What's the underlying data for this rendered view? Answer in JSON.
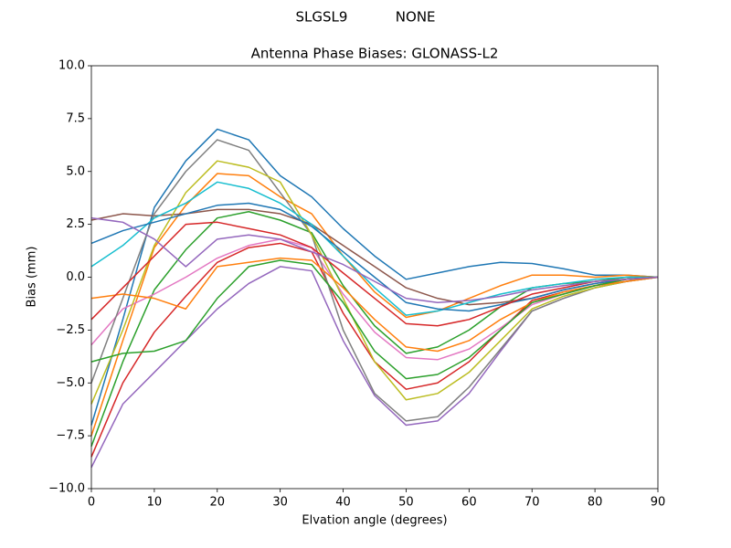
{
  "chart_data": {
    "type": "line",
    "suptitle": "SLGSL9           NONE",
    "title": "Antenna Phase Biases: GLONASS-L2",
    "xlabel": "Elvation angle (degrees)",
    "ylabel": "Bias (mm)",
    "x": [
      0,
      5,
      10,
      15,
      20,
      25,
      30,
      35,
      40,
      45,
      50,
      55,
      60,
      65,
      70,
      75,
      80,
      85,
      90
    ],
    "xlim": [
      0,
      90
    ],
    "xticks": [
      0,
      10,
      20,
      30,
      40,
      50,
      60,
      70,
      80,
      90
    ],
    "ylim": [
      -10,
      10
    ],
    "yticks": [
      {
        "value": -10,
        "label": "−10.0"
      },
      {
        "value": -7.5,
        "label": "−7.5"
      },
      {
        "value": -5,
        "label": "−5.0"
      },
      {
        "value": -2.5,
        "label": "−2.5"
      },
      {
        "value": 0,
        "label": "0.0"
      },
      {
        "value": 2.5,
        "label": "2.5"
      },
      {
        "value": 5,
        "label": "5.0"
      },
      {
        "value": 7.5,
        "label": "7.5"
      },
      {
        "value": 10,
        "label": "10.0"
      }
    ],
    "series": [
      {
        "color": "#1f77b4",
        "values": [
          -7,
          -2,
          3.3,
          5.5,
          7,
          6.5,
          4.8,
          3.8,
          2.3,
          1,
          -0.1,
          0.2,
          0.5,
          0.7,
          0.65,
          0.4,
          0.1,
          0.1,
          0
        ]
      },
      {
        "color": "#ff7f0e",
        "values": [
          -7.5,
          -3,
          1.4,
          3.4,
          4.9,
          4.8,
          3.8,
          3,
          1,
          -0.7,
          -1.9,
          -1.6,
          -1,
          -0.4,
          0.1,
          0.1,
          0,
          0.1,
          0
        ]
      },
      {
        "color": "#2ca02c",
        "values": [
          -8,
          -4,
          -0.6,
          1.3,
          2.8,
          3.1,
          2.7,
          2.1,
          -0.4,
          -2.3,
          -3.6,
          -3.3,
          -2.5,
          -1.4,
          -0.5,
          -0.3,
          -0.2,
          0,
          0
        ]
      },
      {
        "color": "#d62728",
        "values": [
          -8.5,
          -5,
          -2.6,
          -0.9,
          0.7,
          1.4,
          1.6,
          1.2,
          -1.7,
          -4,
          -5.3,
          -5,
          -4,
          -2.5,
          -1.1,
          -0.7,
          -0.4,
          -0.1,
          0
        ]
      },
      {
        "color": "#9467bd",
        "values": [
          -9,
          -6,
          -4.5,
          -3,
          -1.5,
          -0.3,
          0.5,
          0.3,
          -3,
          -5.6,
          -7,
          -6.8,
          -5.5,
          -3.5,
          -1.6,
          -1,
          -0.5,
          -0.2,
          0
        ]
      },
      {
        "color": "#8c564b",
        "values": [
          2.7,
          3,
          2.9,
          3,
          3.2,
          3.2,
          3,
          2.5,
          1.5,
          0.5,
          -0.5,
          -1,
          -1.3,
          -1.2,
          -1,
          -0.6,
          -0.3,
          -0.1,
          0
        ]
      },
      {
        "color": "#e377c2",
        "values": [
          -3.2,
          -1.5,
          -0.8,
          0,
          0.9,
          1.5,
          1.8,
          1.4,
          -0.8,
          -2.6,
          -3.8,
          -3.9,
          -3.4,
          -2.4,
          -1.3,
          -0.8,
          -0.4,
          -0.2,
          0
        ]
      },
      {
        "color": "#7f7f7f",
        "values": [
          -5,
          -1,
          3,
          5,
          6.5,
          6,
          4,
          2,
          -2.5,
          -5.5,
          -6.8,
          -6.6,
          -5.2,
          -3.4,
          -1.6,
          -1,
          -0.5,
          -0.2,
          0
        ]
      },
      {
        "color": "#bcbd22",
        "values": [
          -6,
          -2.5,
          1.5,
          4,
          5.5,
          5.2,
          4.5,
          2,
          -1,
          -4,
          -5.8,
          -5.5,
          -4.5,
          -3,
          -1.5,
          -0.9,
          -0.5,
          -0.2,
          0
        ]
      },
      {
        "color": "#17becf",
        "values": [
          0.5,
          1.5,
          2.8,
          3.5,
          4.5,
          4.2,
          3.5,
          2.5,
          1,
          -0.5,
          -1.8,
          -1.6,
          -1.2,
          -0.8,
          -0.5,
          -0.3,
          -0.1,
          0,
          0
        ]
      },
      {
        "color": "#1f77b4",
        "values": [
          1.6,
          2.2,
          2.6,
          3,
          3.4,
          3.5,
          3.2,
          2.4,
          1.2,
          0,
          -1.2,
          -1.5,
          -1.6,
          -1.3,
          -1,
          -0.6,
          -0.3,
          -0.1,
          0
        ]
      },
      {
        "color": "#ff7f0e",
        "values": [
          -1,
          -0.8,
          -1,
          -1.5,
          0.5,
          0.7,
          0.9,
          0.8,
          -0.5,
          -2,
          -3.3,
          -3.5,
          -3,
          -2,
          -1.2,
          -0.7,
          -0.4,
          -0.2,
          0
        ]
      },
      {
        "color": "#2ca02c",
        "values": [
          -4,
          -3.6,
          -3.5,
          -3,
          -1,
          0.5,
          0.8,
          0.6,
          -1.2,
          -3.5,
          -4.8,
          -4.6,
          -3.8,
          -2.5,
          -1.2,
          -0.8,
          -0.4,
          -0.1,
          0
        ]
      },
      {
        "color": "#d62728",
        "values": [
          -2,
          -0.5,
          1,
          2.5,
          2.6,
          2.3,
          2,
          1.4,
          0.2,
          -1,
          -2.2,
          -2.3,
          -2,
          -1.4,
          -0.8,
          -0.5,
          -0.2,
          -0.1,
          0
        ]
      },
      {
        "color": "#9467bd",
        "values": [
          2.8,
          2.6,
          1.8,
          0.5,
          1.8,
          2,
          1.8,
          1.2,
          0.6,
          -0.2,
          -1,
          -1.2,
          -1.1,
          -0.9,
          -0.6,
          -0.4,
          -0.2,
          -0.1,
          0
        ]
      }
    ]
  }
}
